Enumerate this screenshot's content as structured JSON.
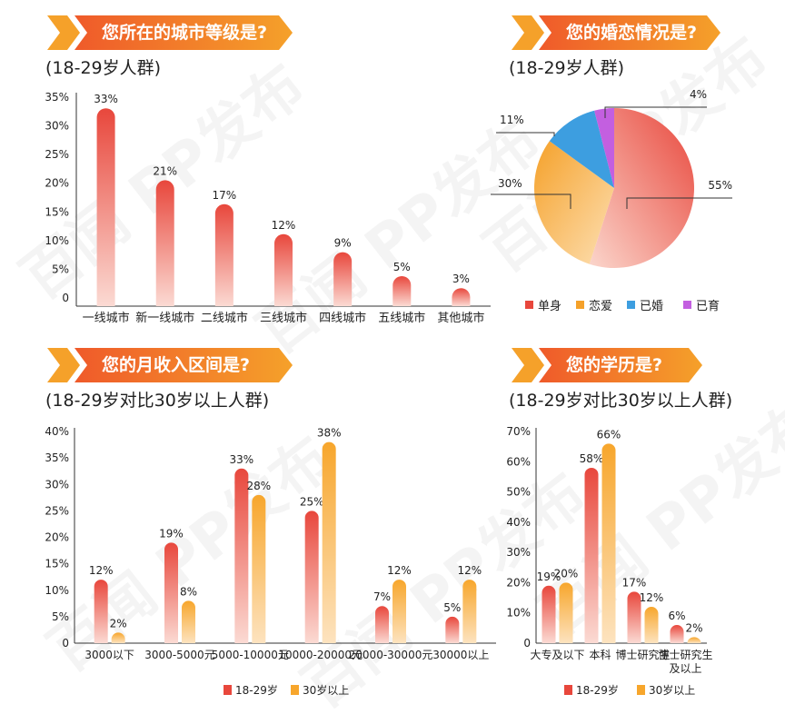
{
  "panels": [
    {
      "banner": "您所在的城市等级是?",
      "subtitle": "(18-29岁人群)"
    },
    {
      "banner": "您的婚恋情况是?",
      "subtitle": "(18-29岁人群)"
    },
    {
      "banner": "您的月收入区间是?",
      "subtitle": "(18-29岁对比30岁以上人群)"
    },
    {
      "banner": "您的学历是?",
      "subtitle": "(18-29岁对比30岁以上人群)"
    }
  ],
  "watermark": "百闻 PP发布",
  "colors": {
    "banner_start": "#f5a12a",
    "banner_end": "#ef5a2a",
    "red_top": "#e8473c",
    "red_bottom": "#fbdad3",
    "orange_top": "#f7a62c",
    "orange_bottom": "#fde3bf",
    "blue": "#3d9ee0",
    "purple": "#c35fe0"
  },
  "chart_data": [
    {
      "type": "bar",
      "title": "您所在的城市等级是?",
      "categories": [
        "一线城市",
        "新一线城市",
        "二线城市",
        "三线城市",
        "四线城市",
        "五线城市",
        "其他城市"
      ],
      "values": [
        33,
        21,
        17,
        12,
        9,
        5,
        3
      ],
      "data_labels": [
        "33%",
        "21%",
        "17%",
        "12%",
        "9%",
        "5%",
        "3%"
      ],
      "yticks": [
        "0",
        "5%",
        "10%",
        "15%",
        "20%",
        "25%",
        "30%",
        "35%"
      ],
      "ylim": [
        0,
        35
      ],
      "grid": false
    },
    {
      "type": "pie",
      "title": "您的婚恋情况是?",
      "labels": [
        "单身",
        "恋爱",
        "已婚",
        "已育"
      ],
      "values": [
        55,
        30,
        11,
        4
      ],
      "data_labels": [
        "55%",
        "30%",
        "11%",
        "4%"
      ],
      "legend": "bottom"
    },
    {
      "type": "bar",
      "title": "您的月收入区间是?",
      "categories": [
        "3000以下",
        "3000-5000元",
        "5000-10000元",
        "10000-20000元",
        "20000-30000元",
        "30000以上"
      ],
      "series": [
        {
          "name": "18-29岁",
          "values": [
            12,
            19,
            33,
            25,
            7,
            5
          ],
          "data_labels": [
            "12%",
            "19%",
            "33%",
            "25%",
            "7%",
            "5%"
          ]
        },
        {
          "name": "30岁以上",
          "values": [
            2,
            8,
            28,
            38,
            12,
            12
          ],
          "data_labels": [
            "2%",
            "8%",
            "28%",
            "38%",
            "12%",
            "12%"
          ]
        }
      ],
      "yticks": [
        "0",
        "5%",
        "10%",
        "15%",
        "20%",
        "25%",
        "30%",
        "35%",
        "40%"
      ],
      "ylim": [
        0,
        40
      ],
      "legend": "bottom",
      "grid": false
    },
    {
      "type": "bar",
      "title": "您的学历是?",
      "categories": [
        "大专及以下",
        "本科",
        "博士研究生",
        "博士研究生\n及以上"
      ],
      "series": [
        {
          "name": "18-29岁",
          "values": [
            19,
            58,
            17,
            6
          ],
          "data_labels": [
            "19%",
            "58%",
            "17%",
            "6%"
          ]
        },
        {
          "name": "30岁以上",
          "values": [
            20,
            66,
            12,
            2
          ],
          "data_labels": [
            "20%",
            "66%",
            "12%",
            "2%"
          ]
        }
      ],
      "yticks": [
        "0",
        "10%",
        "20%",
        "30%",
        "40%",
        "50%",
        "60%",
        "70%"
      ],
      "ylim": [
        0,
        70
      ],
      "legend": "bottom",
      "grid": false
    }
  ]
}
